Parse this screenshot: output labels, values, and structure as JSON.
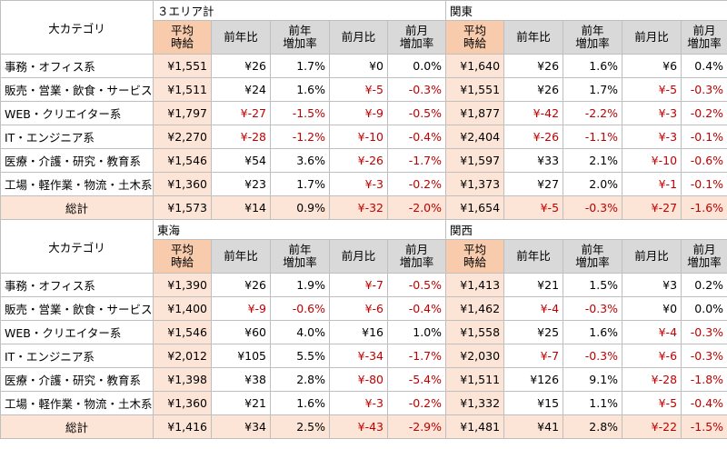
{
  "category_header": "大カテゴリ",
  "column_headers": [
    [
      "平均",
      "時給"
    ],
    [
      "前年比"
    ],
    [
      "前年",
      "増加率"
    ],
    [
      "前月比"
    ],
    [
      "前月",
      "増加率"
    ]
  ],
  "sections": [
    {
      "areas": [
        "３エリア計",
        "関東"
      ],
      "rows": [
        {
          "category": "事務・オフィス系",
          "cells": [
            "¥1,551",
            "¥26",
            "1.7%",
            "¥0",
            "0.0%",
            "¥1,640",
            "¥26",
            "1.6%",
            "¥6",
            "0.4%"
          ]
        },
        {
          "category": "販売・営業・飲食・サービス系",
          "cells": [
            "¥1,511",
            "¥24",
            "1.6%",
            "¥-5",
            "-0.3%",
            "¥1,551",
            "¥26",
            "1.7%",
            "¥-5",
            "-0.3%"
          ]
        },
        {
          "category": "WEB・クリエイター系",
          "cells": [
            "¥1,797",
            "¥-27",
            "-1.5%",
            "¥-9",
            "-0.5%",
            "¥1,877",
            "¥-42",
            "-2.2%",
            "¥-3",
            "-0.2%"
          ]
        },
        {
          "category": "IT・エンジニア系",
          "cells": [
            "¥2,270",
            "¥-28",
            "-1.2%",
            "¥-10",
            "-0.4%",
            "¥2,404",
            "¥-26",
            "-1.1%",
            "¥-3",
            "-0.1%"
          ]
        },
        {
          "category": "医療・介護・研究・教育系",
          "cells": [
            "¥1,546",
            "¥54",
            "3.6%",
            "¥-26",
            "-1.7%",
            "¥1,597",
            "¥33",
            "2.1%",
            "¥-10",
            "-0.6%"
          ]
        },
        {
          "category": "工場・軽作業・物流・土木系",
          "cells": [
            "¥1,360",
            "¥23",
            "1.7%",
            "¥-3",
            "-0.2%",
            "¥1,373",
            "¥27",
            "2.0%",
            "¥-1",
            "-0.1%"
          ]
        }
      ],
      "total": {
        "category": "総計",
        "cells": [
          "¥1,573",
          "¥14",
          "0.9%",
          "¥-32",
          "-2.0%",
          "¥1,654",
          "¥-5",
          "-0.3%",
          "¥-27",
          "-1.6%"
        ]
      }
    },
    {
      "areas": [
        "東海",
        "関西"
      ],
      "rows": [
        {
          "category": "事務・オフィス系",
          "cells": [
            "¥1,390",
            "¥26",
            "1.9%",
            "¥-7",
            "-0.5%",
            "¥1,413",
            "¥21",
            "1.5%",
            "¥3",
            "0.2%"
          ]
        },
        {
          "category": "販売・営業・飲食・サービス系",
          "cells": [
            "¥1,400",
            "¥-9",
            "-0.6%",
            "¥-6",
            "-0.4%",
            "¥1,462",
            "¥-4",
            "-0.3%",
            "¥0",
            "0.0%"
          ]
        },
        {
          "category": "WEB・クリエイター系",
          "cells": [
            "¥1,546",
            "¥60",
            "4.0%",
            "¥16",
            "1.0%",
            "¥1,558",
            "¥25",
            "1.6%",
            "¥-4",
            "-0.3%"
          ]
        },
        {
          "category": "IT・エンジニア系",
          "cells": [
            "¥2,012",
            "¥105",
            "5.5%",
            "¥-34",
            "-1.7%",
            "¥2,030",
            "¥-7",
            "-0.3%",
            "¥-6",
            "-0.3%"
          ]
        },
        {
          "category": "医療・介護・研究・教育系",
          "cells": [
            "¥1,398",
            "¥38",
            "2.8%",
            "¥-80",
            "-5.4%",
            "¥1,511",
            "¥126",
            "9.1%",
            "¥-28",
            "-1.8%"
          ]
        },
        {
          "category": "工場・軽作業・物流・土木系",
          "cells": [
            "¥1,360",
            "¥21",
            "1.6%",
            "¥-3",
            "-0.2%",
            "¥1,332",
            "¥15",
            "1.1%",
            "¥-5",
            "-0.4%"
          ]
        }
      ],
      "total": {
        "category": "総計",
        "cells": [
          "¥1,416",
          "¥34",
          "2.5%",
          "¥-43",
          "-2.9%",
          "¥1,481",
          "¥41",
          "2.8%",
          "¥-22",
          "-1.5%"
        ]
      }
    }
  ],
  "colors": {
    "negative": "#c00000",
    "avg_header": "#f8cbad",
    "avg_cell": "#fce4d6",
    "header_gray": "#d9d9d9",
    "total_row": "#fce4d6"
  }
}
